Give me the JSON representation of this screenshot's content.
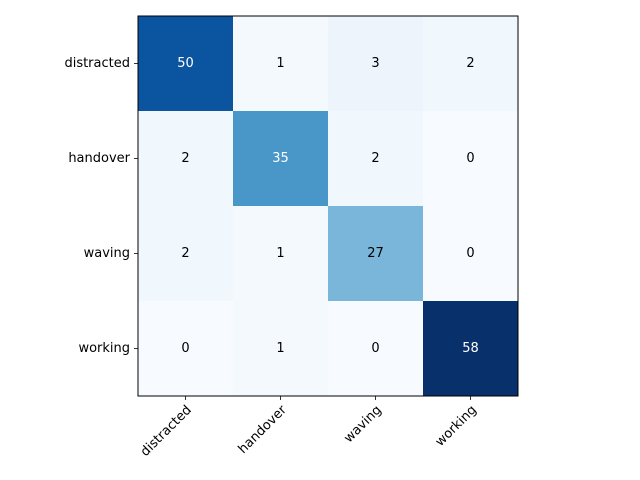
{
  "chart_data": {
    "type": "heatmap",
    "title": "",
    "xlabel": "",
    "ylabel": "",
    "x_categories": [
      "distracted",
      "handover",
      "waving",
      "working"
    ],
    "y_categories": [
      "distracted",
      "handover",
      "waving",
      "working"
    ],
    "values": [
      [
        50,
        1,
        3,
        2
      ],
      [
        2,
        35,
        2,
        0
      ],
      [
        2,
        1,
        27,
        0
      ],
      [
        0,
        1,
        0,
        58
      ]
    ],
    "colormap": "Blues",
    "x_tick_rotation_deg": 45,
    "grid": false,
    "legend": "none"
  }
}
